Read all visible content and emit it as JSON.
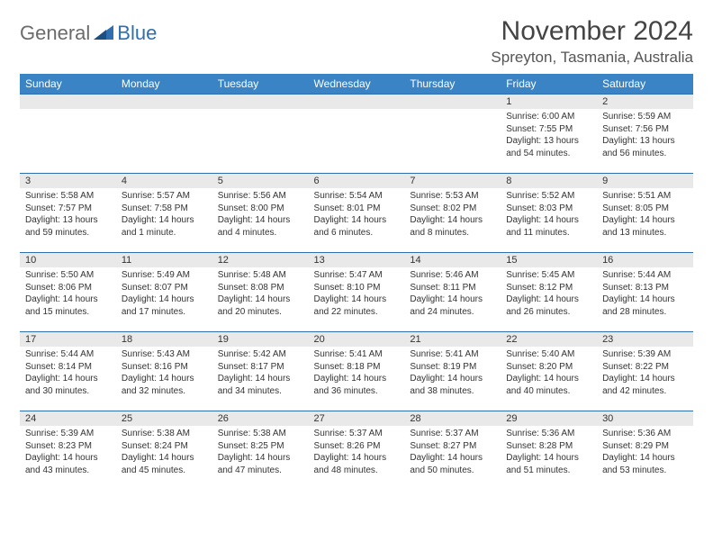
{
  "brand": {
    "part1": "General",
    "part2": "Blue"
  },
  "title": "November 2024",
  "location": "Spreyton, Tasmania, Australia",
  "colors": {
    "header_bg": "#3a84c5",
    "header_text": "#ffffff",
    "border": "#2f6fb0",
    "daynum_bg": "#e9e9e9",
    "text": "#333333",
    "brand_gray": "#6b6b6b",
    "brand_blue": "#2f6fb0",
    "background": "#ffffff"
  },
  "typography": {
    "title_fontsize": 30,
    "location_fontsize": 17,
    "header_fontsize": 12,
    "daynum_fontsize": 11,
    "body_fontsize": 10
  },
  "daysOfWeek": [
    "Sunday",
    "Monday",
    "Tuesday",
    "Wednesday",
    "Thursday",
    "Friday",
    "Saturday"
  ],
  "weeks": [
    [
      {
        "day": "",
        "sunrise": "",
        "sunset": "",
        "daylight": ""
      },
      {
        "day": "",
        "sunrise": "",
        "sunset": "",
        "daylight": ""
      },
      {
        "day": "",
        "sunrise": "",
        "sunset": "",
        "daylight": ""
      },
      {
        "day": "",
        "sunrise": "",
        "sunset": "",
        "daylight": ""
      },
      {
        "day": "",
        "sunrise": "",
        "sunset": "",
        "daylight": ""
      },
      {
        "day": "1",
        "sunrise": "Sunrise: 6:00 AM",
        "sunset": "Sunset: 7:55 PM",
        "daylight": "Daylight: 13 hours and 54 minutes."
      },
      {
        "day": "2",
        "sunrise": "Sunrise: 5:59 AM",
        "sunset": "Sunset: 7:56 PM",
        "daylight": "Daylight: 13 hours and 56 minutes."
      }
    ],
    [
      {
        "day": "3",
        "sunrise": "Sunrise: 5:58 AM",
        "sunset": "Sunset: 7:57 PM",
        "daylight": "Daylight: 13 hours and 59 minutes."
      },
      {
        "day": "4",
        "sunrise": "Sunrise: 5:57 AM",
        "sunset": "Sunset: 7:58 PM",
        "daylight": "Daylight: 14 hours and 1 minute."
      },
      {
        "day": "5",
        "sunrise": "Sunrise: 5:56 AM",
        "sunset": "Sunset: 8:00 PM",
        "daylight": "Daylight: 14 hours and 4 minutes."
      },
      {
        "day": "6",
        "sunrise": "Sunrise: 5:54 AM",
        "sunset": "Sunset: 8:01 PM",
        "daylight": "Daylight: 14 hours and 6 minutes."
      },
      {
        "day": "7",
        "sunrise": "Sunrise: 5:53 AM",
        "sunset": "Sunset: 8:02 PM",
        "daylight": "Daylight: 14 hours and 8 minutes."
      },
      {
        "day": "8",
        "sunrise": "Sunrise: 5:52 AM",
        "sunset": "Sunset: 8:03 PM",
        "daylight": "Daylight: 14 hours and 11 minutes."
      },
      {
        "day": "9",
        "sunrise": "Sunrise: 5:51 AM",
        "sunset": "Sunset: 8:05 PM",
        "daylight": "Daylight: 14 hours and 13 minutes."
      }
    ],
    [
      {
        "day": "10",
        "sunrise": "Sunrise: 5:50 AM",
        "sunset": "Sunset: 8:06 PM",
        "daylight": "Daylight: 14 hours and 15 minutes."
      },
      {
        "day": "11",
        "sunrise": "Sunrise: 5:49 AM",
        "sunset": "Sunset: 8:07 PM",
        "daylight": "Daylight: 14 hours and 17 minutes."
      },
      {
        "day": "12",
        "sunrise": "Sunrise: 5:48 AM",
        "sunset": "Sunset: 8:08 PM",
        "daylight": "Daylight: 14 hours and 20 minutes."
      },
      {
        "day": "13",
        "sunrise": "Sunrise: 5:47 AM",
        "sunset": "Sunset: 8:10 PM",
        "daylight": "Daylight: 14 hours and 22 minutes."
      },
      {
        "day": "14",
        "sunrise": "Sunrise: 5:46 AM",
        "sunset": "Sunset: 8:11 PM",
        "daylight": "Daylight: 14 hours and 24 minutes."
      },
      {
        "day": "15",
        "sunrise": "Sunrise: 5:45 AM",
        "sunset": "Sunset: 8:12 PM",
        "daylight": "Daylight: 14 hours and 26 minutes."
      },
      {
        "day": "16",
        "sunrise": "Sunrise: 5:44 AM",
        "sunset": "Sunset: 8:13 PM",
        "daylight": "Daylight: 14 hours and 28 minutes."
      }
    ],
    [
      {
        "day": "17",
        "sunrise": "Sunrise: 5:44 AM",
        "sunset": "Sunset: 8:14 PM",
        "daylight": "Daylight: 14 hours and 30 minutes."
      },
      {
        "day": "18",
        "sunrise": "Sunrise: 5:43 AM",
        "sunset": "Sunset: 8:16 PM",
        "daylight": "Daylight: 14 hours and 32 minutes."
      },
      {
        "day": "19",
        "sunrise": "Sunrise: 5:42 AM",
        "sunset": "Sunset: 8:17 PM",
        "daylight": "Daylight: 14 hours and 34 minutes."
      },
      {
        "day": "20",
        "sunrise": "Sunrise: 5:41 AM",
        "sunset": "Sunset: 8:18 PM",
        "daylight": "Daylight: 14 hours and 36 minutes."
      },
      {
        "day": "21",
        "sunrise": "Sunrise: 5:41 AM",
        "sunset": "Sunset: 8:19 PM",
        "daylight": "Daylight: 14 hours and 38 minutes."
      },
      {
        "day": "22",
        "sunrise": "Sunrise: 5:40 AM",
        "sunset": "Sunset: 8:20 PM",
        "daylight": "Daylight: 14 hours and 40 minutes."
      },
      {
        "day": "23",
        "sunrise": "Sunrise: 5:39 AM",
        "sunset": "Sunset: 8:22 PM",
        "daylight": "Daylight: 14 hours and 42 minutes."
      }
    ],
    [
      {
        "day": "24",
        "sunrise": "Sunrise: 5:39 AM",
        "sunset": "Sunset: 8:23 PM",
        "daylight": "Daylight: 14 hours and 43 minutes."
      },
      {
        "day": "25",
        "sunrise": "Sunrise: 5:38 AM",
        "sunset": "Sunset: 8:24 PM",
        "daylight": "Daylight: 14 hours and 45 minutes."
      },
      {
        "day": "26",
        "sunrise": "Sunrise: 5:38 AM",
        "sunset": "Sunset: 8:25 PM",
        "daylight": "Daylight: 14 hours and 47 minutes."
      },
      {
        "day": "27",
        "sunrise": "Sunrise: 5:37 AM",
        "sunset": "Sunset: 8:26 PM",
        "daylight": "Daylight: 14 hours and 48 minutes."
      },
      {
        "day": "28",
        "sunrise": "Sunrise: 5:37 AM",
        "sunset": "Sunset: 8:27 PM",
        "daylight": "Daylight: 14 hours and 50 minutes."
      },
      {
        "day": "29",
        "sunrise": "Sunrise: 5:36 AM",
        "sunset": "Sunset: 8:28 PM",
        "daylight": "Daylight: 14 hours and 51 minutes."
      },
      {
        "day": "30",
        "sunrise": "Sunrise: 5:36 AM",
        "sunset": "Sunset: 8:29 PM",
        "daylight": "Daylight: 14 hours and 53 minutes."
      }
    ]
  ]
}
